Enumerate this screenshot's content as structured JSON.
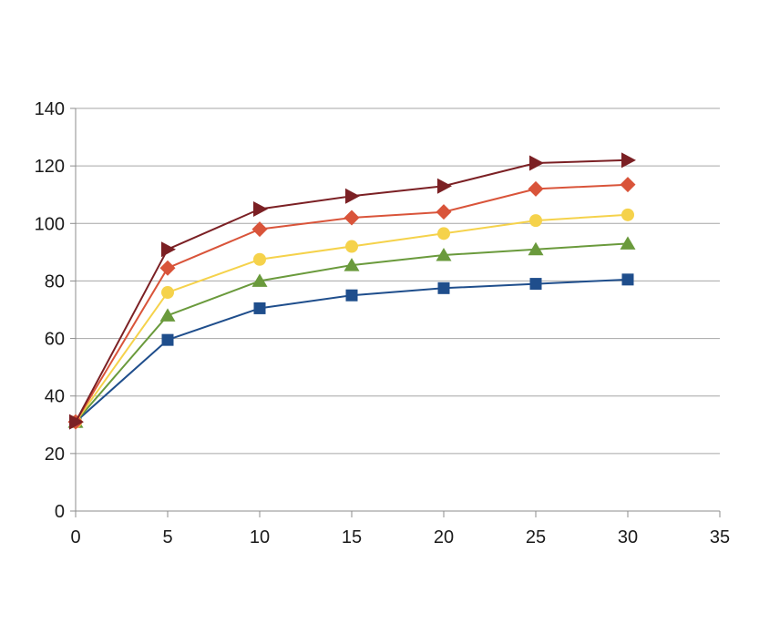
{
  "chart_data": {
    "type": "line",
    "title": "",
    "xlabel": "",
    "ylabel": "",
    "xlim": [
      0,
      35
    ],
    "ylim": [
      0,
      140
    ],
    "x_ticks": [
      "0",
      "5",
      "10",
      "15",
      "20",
      "25",
      "30",
      "35"
    ],
    "y_ticks": [
      "0",
      "20",
      "40",
      "60",
      "80",
      "100",
      "120",
      "140"
    ],
    "grid": {
      "horizontal": true,
      "vertical": false
    },
    "legend": "none",
    "x": [
      0,
      5,
      10,
      15,
      20,
      25,
      30
    ],
    "series": [
      {
        "marker": "square",
        "color": "#1f4e8c",
        "values": [
          31,
          59.5,
          70.5,
          75,
          77.5,
          79,
          80.5
        ]
      },
      {
        "marker": "triangle",
        "color": "#6a9a3c",
        "values": [
          31,
          68,
          80,
          85.5,
          89,
          91,
          93
        ]
      },
      {
        "marker": "circle",
        "color": "#f5d24b",
        "values": [
          31,
          76,
          87.5,
          92,
          96.5,
          101,
          103
        ]
      },
      {
        "marker": "diamond",
        "color": "#d9543a",
        "values": [
          31,
          84.5,
          98,
          102,
          104,
          112,
          113.5
        ]
      },
      {
        "marker": "triangle-right",
        "color": "#7b2024",
        "values": [
          31,
          91,
          105,
          109.5,
          113,
          121,
          122
        ]
      }
    ]
  }
}
